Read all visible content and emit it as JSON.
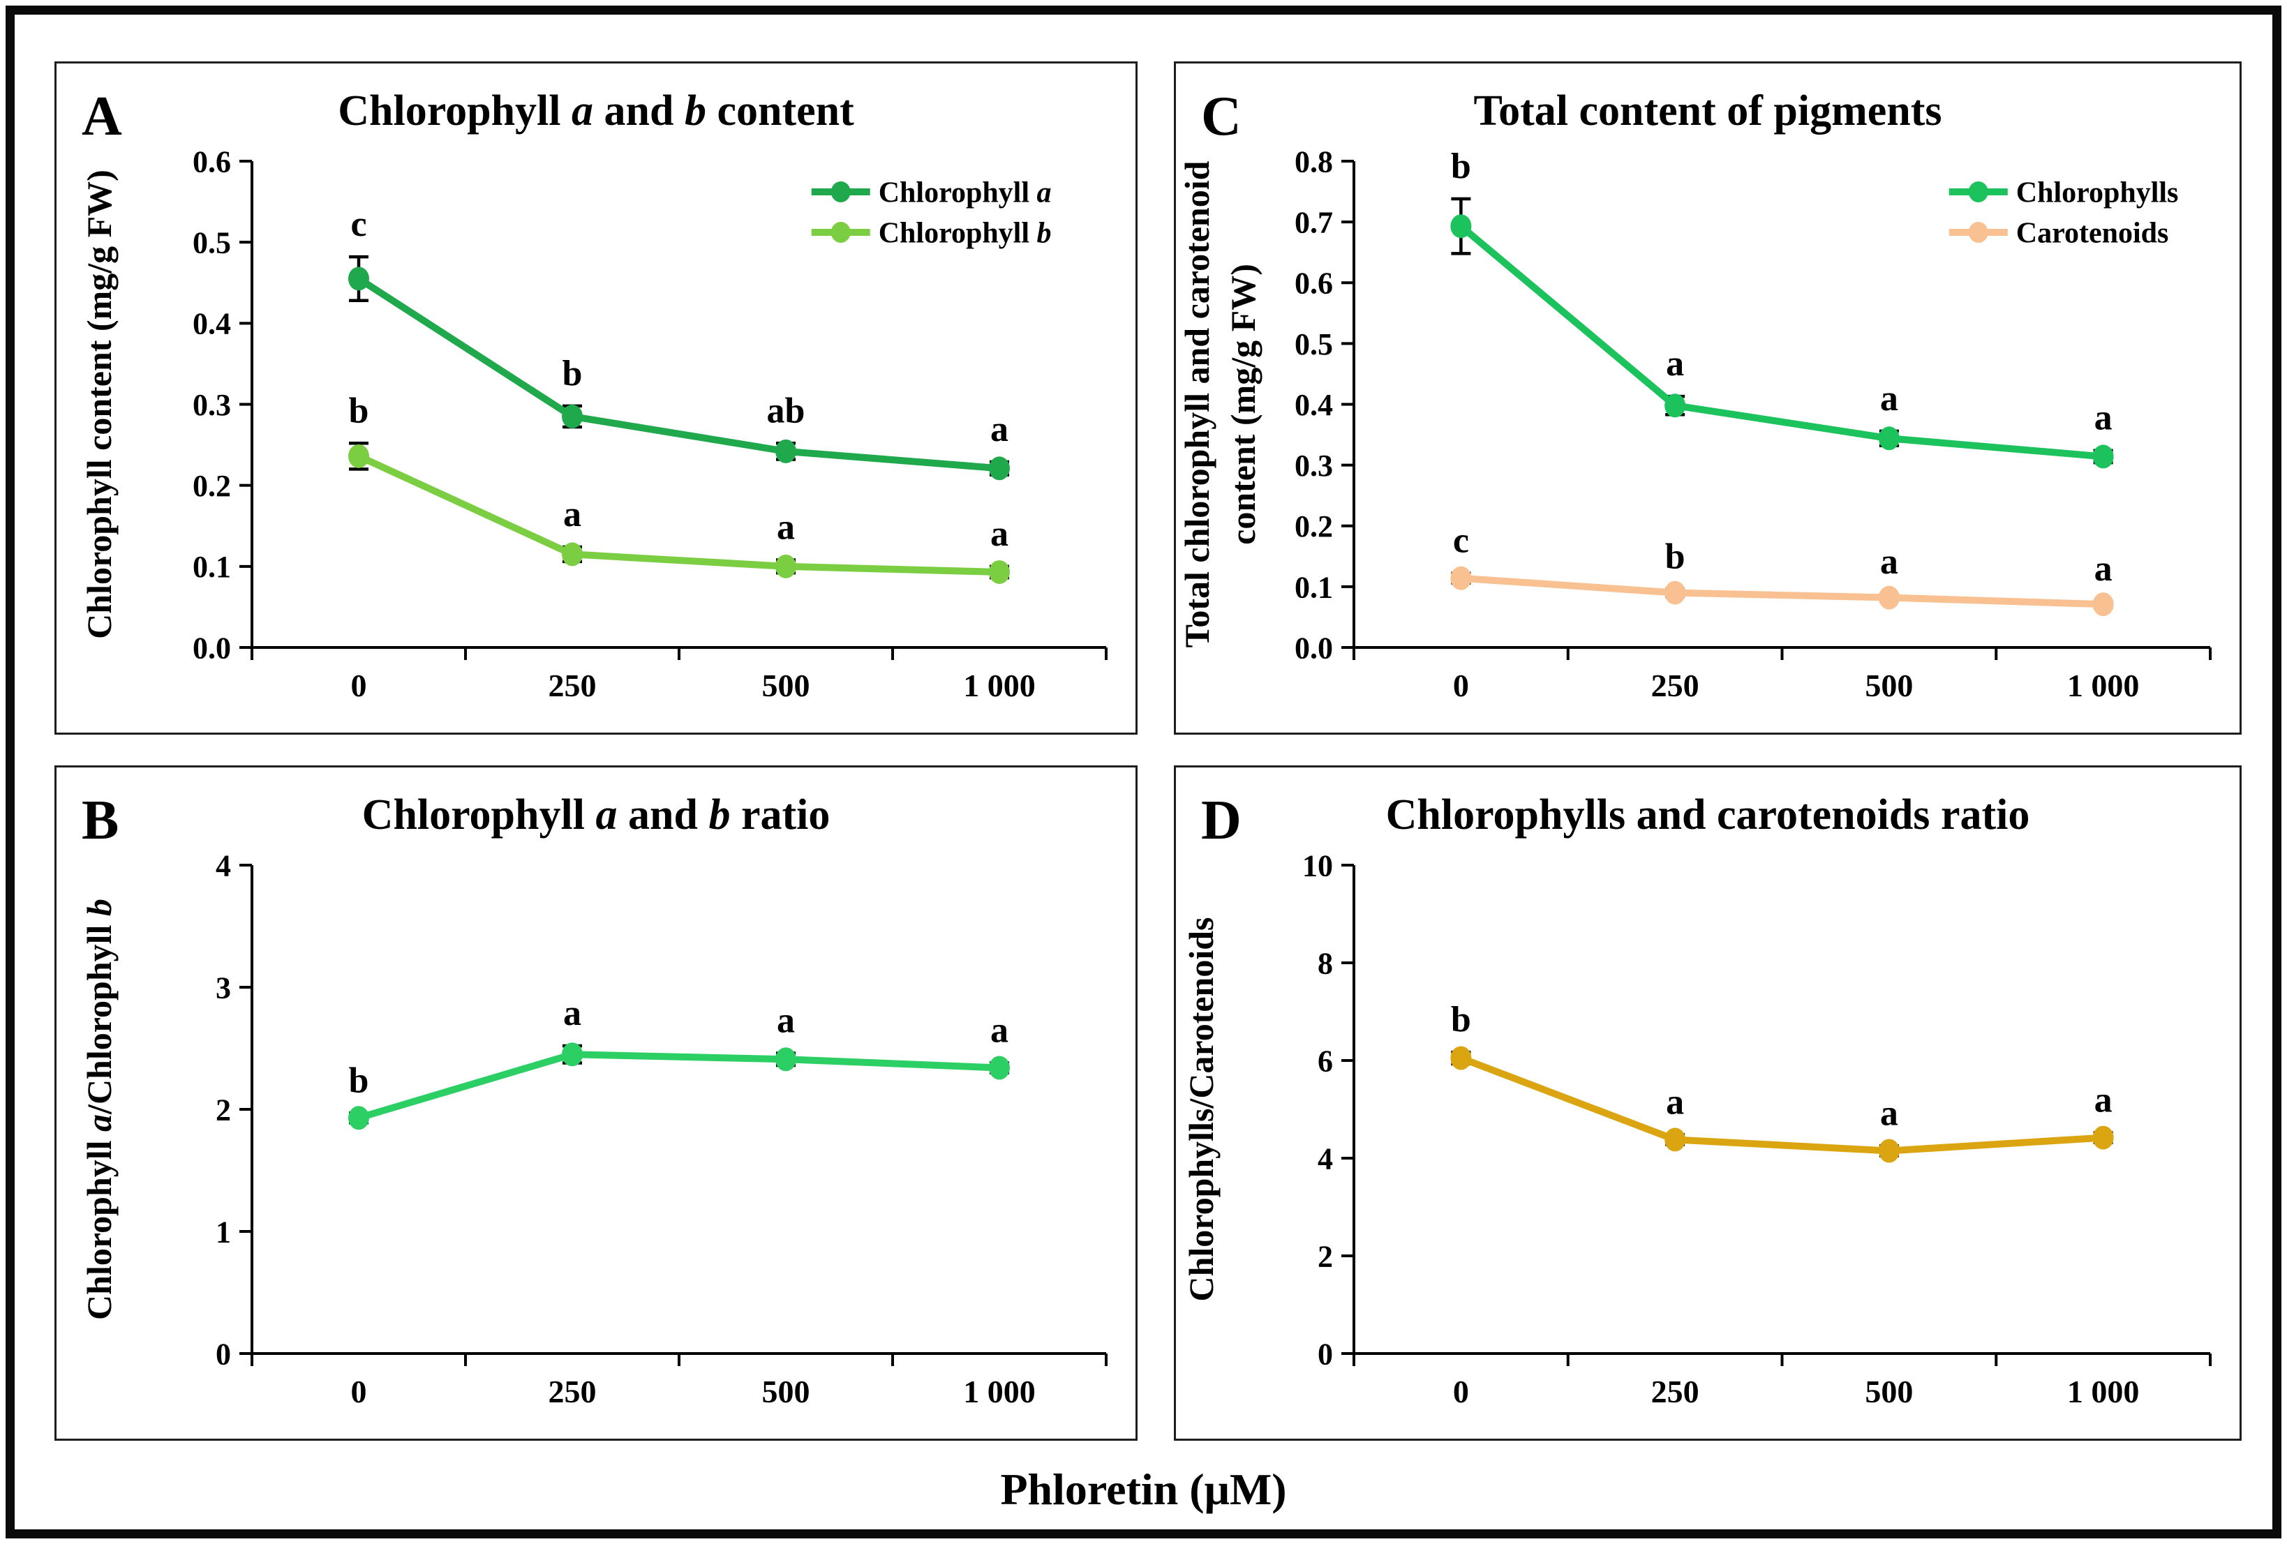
{
  "figure": {
    "xlabel": "Phloretin (μM)",
    "background": "#ffffff",
    "frame_color": "#0a0a0a",
    "panel_border_color": "#1f1f1f",
    "text_color": "#000000"
  },
  "chart_data": [
    {
      "id": "A",
      "letter": "A",
      "type": "line",
      "title_parts": [
        {
          "t": "Chlorophyll ",
          "i": false
        },
        {
          "t": "a",
          "i": true
        },
        {
          "t": " and ",
          "i": false
        },
        {
          "t": "b",
          "i": true
        },
        {
          "t": " content",
          "i": false
        }
      ],
      "ylabel_lines": [
        [
          {
            "t": "Chlorophyll content (mg/g FW)",
            "i": false
          }
        ]
      ],
      "categories": [
        "0",
        "250",
        "500",
        "1 000"
      ],
      "xlabel": "",
      "ylim": [
        0,
        0.6
      ],
      "yticks": [
        "0.0",
        "0.1",
        "0.2",
        "0.3",
        "0.4",
        "0.5",
        "0.6"
      ],
      "legend": true,
      "series": [
        {
          "name_parts": [
            {
              "t": "Chlorophyll ",
              "i": false
            },
            {
              "t": "a",
              "i": true
            }
          ],
          "slug": "chlorophyll-a",
          "color": "#1FA94C",
          "values": [
            0.455,
            0.285,
            0.242,
            0.221
          ],
          "errors": [
            0.027,
            0.013,
            0.01,
            0.008
          ],
          "letters": [
            "c",
            "b",
            "ab",
            "a"
          ]
        },
        {
          "name_parts": [
            {
              "t": "Chlorophyll ",
              "i": false
            },
            {
              "t": "b",
              "i": true
            }
          ],
          "slug": "chlorophyll-b",
          "color": "#7BCE41",
          "values": [
            0.236,
            0.115,
            0.1,
            0.093
          ],
          "errors": [
            0.016,
            0.009,
            0.008,
            0.007
          ],
          "letters": [
            "b",
            "a",
            "a",
            "a"
          ]
        }
      ]
    },
    {
      "id": "C",
      "letter": "C",
      "type": "line",
      "title_parts": [
        {
          "t": "Total content of pigments",
          "i": false
        }
      ],
      "ylabel_lines": [
        [
          {
            "t": "Total chlorophyll and carotenoid",
            "i": false
          }
        ],
        [
          {
            "t": "content (mg/g FW)",
            "i": false
          }
        ]
      ],
      "categories": [
        "0",
        "250",
        "500",
        "1 000"
      ],
      "xlabel": "",
      "ylim": [
        0,
        0.8
      ],
      "yticks": [
        "0.0",
        "0.1",
        "0.2",
        "0.3",
        "0.4",
        "0.5",
        "0.6",
        "0.7",
        "0.8"
      ],
      "legend": true,
      "series": [
        {
          "name_parts": [
            {
              "t": "Chlorophylls",
              "i": false
            }
          ],
          "slug": "chlorophylls",
          "color": "#1CC25B",
          "values": [
            0.693,
            0.398,
            0.344,
            0.314
          ],
          "errors": [
            0.045,
            0.015,
            0.012,
            0.01
          ],
          "letters": [
            "b",
            "a",
            "a",
            "a"
          ]
        },
        {
          "name_parts": [
            {
              "t": "Carotenoids",
              "i": false
            }
          ],
          "slug": "carotenoids",
          "color": "#F9C191",
          "values": [
            0.114,
            0.09,
            0.082,
            0.071
          ],
          "errors": [
            0.008,
            0.006,
            0.005,
            0.005
          ],
          "letters": [
            "c",
            "b",
            "a",
            "a"
          ]
        }
      ]
    },
    {
      "id": "B",
      "letter": "B",
      "type": "line",
      "title_parts": [
        {
          "t": "Chlorophyll ",
          "i": false
        },
        {
          "t": "a",
          "i": true
        },
        {
          "t": " and ",
          "i": false
        },
        {
          "t": "b",
          "i": true
        },
        {
          "t": " ratio",
          "i": false
        }
      ],
      "ylabel_lines": [
        [
          {
            "t": "Chlorophyll ",
            "i": false
          },
          {
            "t": "a",
            "i": true
          },
          {
            "t": "/Chlorophyll ",
            "i": false
          },
          {
            "t": "b",
            "i": true
          }
        ]
      ],
      "categories": [
        "0",
        "250",
        "500",
        "1 000"
      ],
      "xlabel": "",
      "ylim": [
        0,
        4
      ],
      "yticks": [
        "0",
        "1",
        "2",
        "3",
        "4"
      ],
      "legend": false,
      "series": [
        {
          "name_parts": [
            {
              "t": "Chlorophyll a/b",
              "i": false
            }
          ],
          "slug": "chl-a-b-ratio",
          "color": "#2BCF63",
          "values": [
            1.93,
            2.45,
            2.41,
            2.34
          ],
          "errors": [
            0.04,
            0.07,
            0.05,
            0.04
          ],
          "letters": [
            "b",
            "a",
            "a",
            "a"
          ]
        }
      ]
    },
    {
      "id": "D",
      "letter": "D",
      "type": "line",
      "title_parts": [
        {
          "t": "Chlorophylls and carotenoids ratio",
          "i": false
        }
      ],
      "ylabel_lines": [
        [
          {
            "t": "Chlorophylls/Carotenoids",
            "i": false
          }
        ]
      ],
      "categories": [
        "0",
        "250",
        "500",
        "1 000"
      ],
      "xlabel": "",
      "ylim": [
        0,
        10
      ],
      "yticks": [
        "0",
        "2",
        "4",
        "6",
        "8",
        "10"
      ],
      "legend": false,
      "series": [
        {
          "name_parts": [
            {
              "t": "Chlorophylls/Carotenoids",
              "i": false
            }
          ],
          "slug": "chl-car-ratio",
          "color": "#DBA512",
          "values": [
            6.05,
            4.38,
            4.15,
            4.42
          ],
          "errors": [
            0.12,
            0.1,
            0.1,
            0.1
          ],
          "letters": [
            "b",
            "a",
            "a",
            "a"
          ]
        }
      ]
    }
  ]
}
